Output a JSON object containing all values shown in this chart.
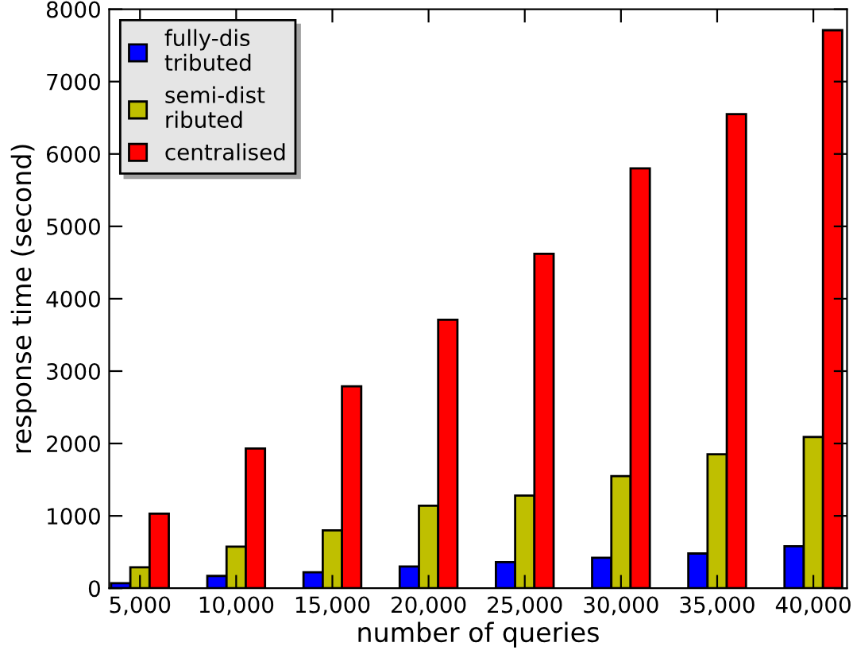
{
  "chart_data": {
    "type": "bar",
    "xlabel": "number of queries",
    "ylabel": "response time (second)",
    "categories": [
      "5,000",
      "10,000",
      "15,000",
      "20,000",
      "25,000",
      "30,000",
      "35,000",
      "40,000"
    ],
    "series": [
      {
        "name": "fully-dis\ntributed",
        "color": "#0000ff",
        "values": [
          70,
          170,
          220,
          300,
          360,
          420,
          480,
          580
        ]
      },
      {
        "name": "semi-dist\nributed",
        "color": "#bfbf00",
        "values": [
          290,
          575,
          800,
          1140,
          1280,
          1550,
          1850,
          2090
        ]
      },
      {
        "name": "centralised",
        "color": "#ff0000",
        "values": [
          1030,
          1930,
          2790,
          3710,
          4620,
          5800,
          6550,
          7710
        ]
      }
    ],
    "ylim": [
      0,
      8000
    ],
    "yticks": [
      0,
      1000,
      2000,
      3000,
      4000,
      5000,
      6000,
      7000,
      8000
    ],
    "grid": false,
    "legend": "top left"
  }
}
